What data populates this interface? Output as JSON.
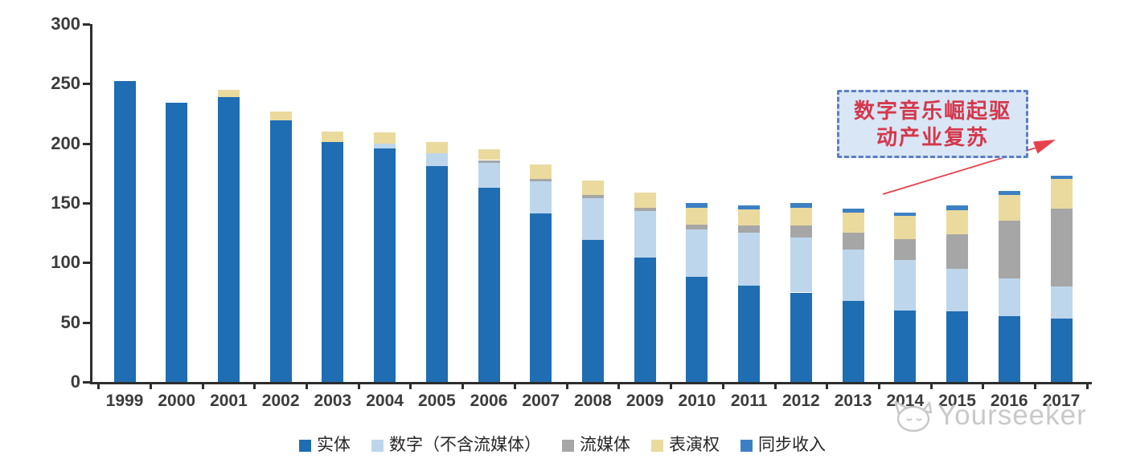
{
  "chart_data": {
    "type": "bar",
    "stacked": true,
    "title": "",
    "xlabel": "",
    "ylabel": "",
    "categories": [
      "1999",
      "2000",
      "2001",
      "2002",
      "2003",
      "2004",
      "2005",
      "2006",
      "2007",
      "2008",
      "2009",
      "2010",
      "2011",
      "2012",
      "2013",
      "2014",
      "2015",
      "2016",
      "2017"
    ],
    "series": [
      {
        "id": "physical",
        "name": "实体",
        "color": "#1f6db3",
        "values": [
          252,
          234,
          239,
          219,
          201,
          196,
          181,
          163,
          141,
          119,
          104,
          88,
          81,
          75,
          68,
          60,
          59,
          55,
          53
        ]
      },
      {
        "id": "digital-excl-streaming",
        "name": "数字（不含流媒体）",
        "color": "#bdd6ec",
        "values": [
          0,
          0,
          0,
          0,
          0,
          4,
          11,
          21,
          27,
          35,
          39,
          40,
          44,
          46,
          43,
          42,
          36,
          32,
          27
        ]
      },
      {
        "id": "streaming",
        "name": "流媒体",
        "color": "#a6a6a6",
        "values": [
          0,
          0,
          0,
          0,
          0,
          0,
          0,
          2,
          2,
          3,
          3,
          4,
          6,
          10,
          14,
          18,
          29,
          48,
          65
        ]
      },
      {
        "id": "performance-rights",
        "name": "表演权",
        "color": "#eada9e",
        "values": [
          0,
          0,
          6,
          8,
          9,
          9,
          9,
          9,
          12,
          12,
          13,
          14,
          14,
          15,
          17,
          19,
          20,
          22,
          25
        ]
      },
      {
        "id": "sync-revenue",
        "name": "同步收入",
        "color": "#3c80c4",
        "values": [
          0,
          0,
          0,
          0,
          0,
          0,
          0,
          0,
          0,
          0,
          0,
          4,
          3,
          4,
          3,
          3,
          4,
          3,
          3
        ]
      }
    ],
    "totals": [
      252,
      234,
      245,
      227,
      210,
      209,
      201,
      195,
      182,
      169,
      159,
      150,
      148,
      150,
      145,
      142,
      148,
      160,
      173
    ],
    "ylim": [
      0,
      300
    ],
    "yticks": [
      0,
      50,
      100,
      150,
      200,
      250,
      300
    ],
    "grid": false,
    "legend_position": "bottom"
  },
  "annotation": {
    "lines": [
      "数字音乐崛起驱",
      "动产业复苏"
    ],
    "text_color": "#d5374a",
    "box_fill": "#d9e6f5",
    "box_border": "#5b7ec5",
    "arrow_color": "#e8404a"
  },
  "watermark": {
    "text": "Yourseeker",
    "logo": "cat-logo",
    "color": "#c9c9c9"
  }
}
